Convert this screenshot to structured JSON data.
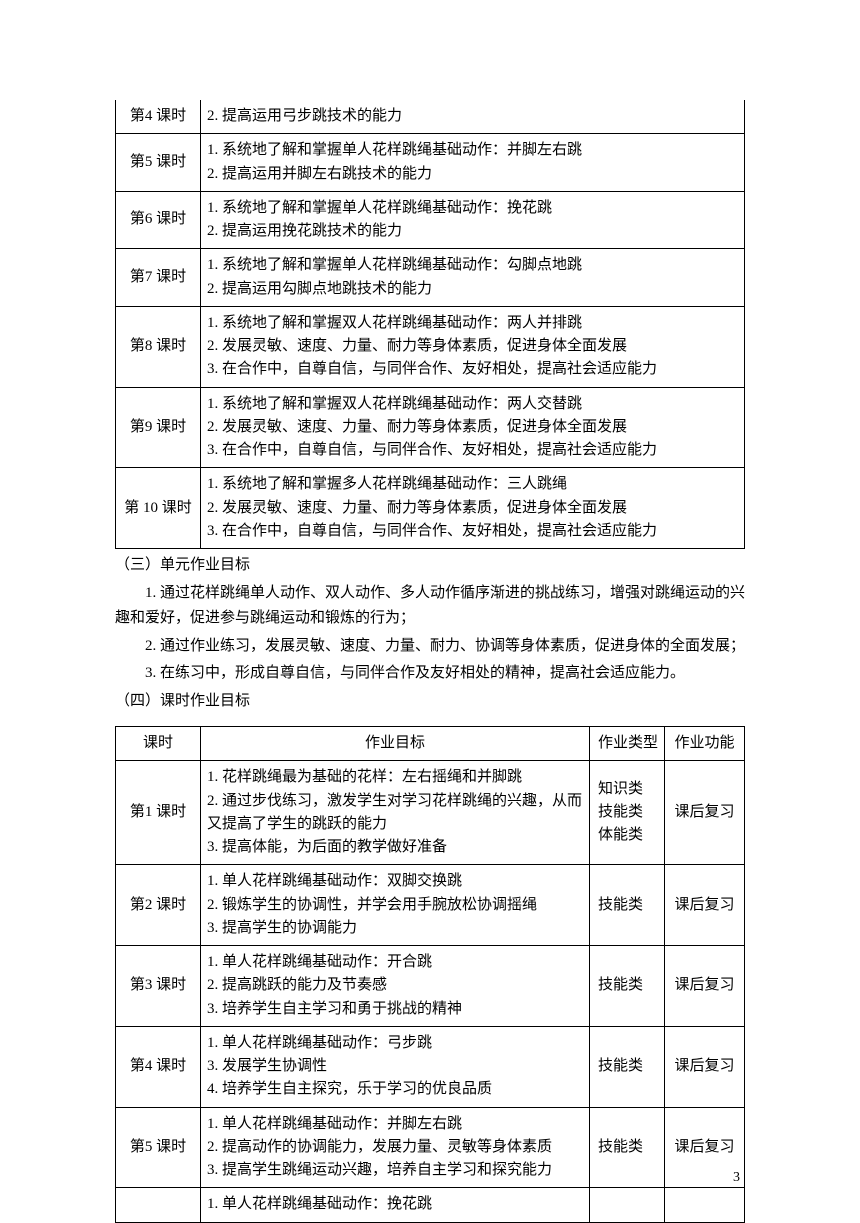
{
  "table1": {
    "rows": [
      {
        "lesson": "第4 课时",
        "content": "2. 提高运用弓步跳技术的能力"
      },
      {
        "lesson": "第5 课时",
        "content": "1. 系统地了解和掌握单人花样跳绳基础动作：并脚左右跳\n2. 提高运用并脚左右跳技术的能力"
      },
      {
        "lesson": "第6 课时",
        "content": "1. 系统地了解和掌握单人花样跳绳基础动作：挽花跳\n2. 提高运用挽花跳技术的能力"
      },
      {
        "lesson": "第7 课时",
        "content": "1. 系统地了解和掌握单人花样跳绳基础动作：勾脚点地跳\n2. 提高运用勾脚点地跳技术的能力"
      },
      {
        "lesson": "第8 课时",
        "content": "1.  系统地了解和掌握双人花样跳绳基础动作：两人并排跳\n2. 发展灵敏、速度、力量、耐力等身体素质，促进身体全面发展\n3. 在合作中，自尊自信，与同伴合作、友好相处，提高社会适应能力"
      },
      {
        "lesson": "第9 课时",
        "content": "1.   系统地了解和掌握双人花样跳绳基础动作：两人交替跳\n2.   发展灵敏、速度、力量、耐力等身体素质，促进身体全面发展\n3.   在合作中，自尊自信，与同伴合作、友好相处，提高社会适应能力"
      },
      {
        "lesson": "第 10 课时",
        "content": "1. 系统地了解和掌握多人花样跳绳基础动作：三人跳绳\n2. 发展灵敏、速度、力量、耐力等身体素质，促进身体全面发展\n3. 在合作中，自尊自信，与同伴合作、友好相处，提高社会适应能力"
      }
    ]
  },
  "section3": {
    "title": "（三）单元作业目标",
    "p1": "1. 通过花样跳绳单人动作、双人动作、多人动作循序渐进的挑战练习，增强对跳绳运动的兴趣和爱好，促进参与跳绳运动和锻炼的行为；",
    "p2": "2. 通过作业练习，发展灵敏、速度、力量、耐力、协调等身体素质，促进身体的全面发展；",
    "p3": "3. 在练习中，形成自尊自信，与同伴合作及友好相处的精神，提高社会适应能力。"
  },
  "section4": {
    "title": "（四）课时作业目标"
  },
  "table2": {
    "header": {
      "c1": "课时",
      "c2": "作业目标",
      "c3": "作业类型",
      "c4": "作业功能"
    },
    "rows": [
      {
        "lesson": "第1 课时",
        "goal": "1.  花样跳绳最为基础的花样：左右摇绳和并脚跳\n2. 通过步伐练习，激发学生对学习花样跳绳的兴趣，从而又提高了学生的跳跃的能力\n3.  提高体能，为后面的教学做好准备",
        "type": "知识类\n技能类\n体能类",
        "func": "课后复习"
      },
      {
        "lesson": "第2 课时",
        "goal": "1.  单人花样跳绳基础动作：双脚交换跳\n2.  锻炼学生的协调性，并学会用手腕放松协调摇绳\n3. 提高学生的协调能力",
        "type": "技能类",
        "func": "课后复习"
      },
      {
        "lesson": "第3 课时",
        "goal": "1.  单人花样跳绳基础动作：开合跳\n2.  提高跳跃的能力及节奏感\n3.  培养学生自主学习和勇于挑战的精神",
        "type": "技能类",
        "func": "课后复习"
      },
      {
        "lesson": "第4 课时",
        "goal": "1.  单人花样跳绳基础动作：弓步跳\n3.   发展学生协调性\n4.   培养学生自主探究，乐于学习的优良品质",
        "type": "技能类",
        "func": "课后复习"
      },
      {
        "lesson": "第5 课时",
        "goal": "1.  单人花样跳绳基础动作：并脚左右跳\n2. 提高动作的协调能力，发展力量、灵敏等身体素质\n3.  提高学生跳绳运动兴趣，培养自主学习和探究能力",
        "type": "技能类",
        "func": "课后复习"
      },
      {
        "lesson": "",
        "goal": "1.  单人花样跳绳基础动作：挽花跳",
        "type": "",
        "func": ""
      }
    ]
  },
  "pageNumber": "3"
}
